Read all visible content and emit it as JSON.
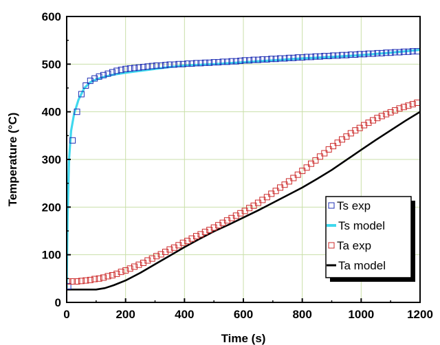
{
  "chart_data": {
    "type": "scatter",
    "xlabel": "Time (s)",
    "ylabel": "Temperature (°C)",
    "xlim": [
      0,
      1200
    ],
    "ylim": [
      0,
      600
    ],
    "xticks": [
      "0",
      "200",
      "400",
      "600",
      "800",
      "1000",
      "1200"
    ],
    "yticks": [
      "0",
      "100",
      "200",
      "300",
      "400",
      "500",
      "600"
    ],
    "grid": true,
    "legend_position": "bottom-right",
    "colors": {
      "ts_exp": "#1f2fb4",
      "ts_model": "#3fd8ee",
      "ta_exp": "#cc2a2a",
      "ta_model": "#000000",
      "grid": "#c9dfa8"
    },
    "series": [
      {
        "name": "Ts exp",
        "kind": "markers",
        "marker": "open-square",
        "x": [
          5,
          20,
          35,
          50,
          65,
          80,
          95,
          110,
          125,
          140,
          155,
          170,
          185,
          200,
          215,
          230,
          245,
          260,
          275,
          290,
          305,
          320,
          335,
          350,
          365,
          380,
          395,
          410,
          425,
          440,
          455,
          470,
          485,
          500,
          515,
          530,
          545,
          560,
          575,
          590,
          605,
          620,
          635,
          650,
          665,
          680,
          695,
          710,
          725,
          740,
          755,
          770,
          785,
          800,
          815,
          830,
          845,
          860,
          875,
          890,
          905,
          920,
          935,
          950,
          965,
          980,
          995,
          1010,
          1025,
          1040,
          1055,
          1070,
          1085,
          1100,
          1115,
          1130,
          1145,
          1160,
          1175,
          1190
        ],
        "y": [
          34,
          340,
          400,
          437,
          455,
          465,
          470,
          474,
          477,
          480,
          483,
          486,
          488,
          490,
          491,
          492,
          493,
          494,
          495,
          496,
          497,
          497,
          498,
          499,
          499,
          500,
          500,
          501,
          501,
          502,
          502,
          503,
          503,
          504,
          504,
          505,
          505,
          506,
          506,
          507,
          508,
          508,
          509,
          509,
          510,
          510,
          511,
          511,
          512,
          512,
          513,
          513,
          514,
          514,
          515,
          515,
          516,
          516,
          517,
          517,
          518,
          518,
          519,
          519,
          520,
          520,
          521,
          521,
          522,
          522,
          523,
          523,
          524,
          524,
          525,
          525,
          526,
          526,
          527,
          527
        ]
      },
      {
        "name": "Ts model",
        "kind": "line",
        "x": [
          0,
          3,
          8,
          15,
          25,
          40,
          60,
          80,
          100,
          130,
          160,
          200,
          250,
          300,
          350,
          400,
          500,
          600,
          700,
          800,
          900,
          1000,
          1100,
          1200
        ],
        "y": [
          30,
          180,
          300,
          360,
          395,
          425,
          450,
          462,
          468,
          474,
          478,
          482,
          486,
          490,
          494,
          497,
          500,
          504,
          508,
          512,
          515,
          519,
          524,
          530
        ]
      },
      {
        "name": "Ta exp",
        "kind": "markers",
        "marker": "open-square",
        "x": [
          5,
          20,
          35,
          50,
          65,
          80,
          95,
          110,
          125,
          140,
          155,
          170,
          185,
          200,
          215,
          230,
          245,
          260,
          275,
          290,
          305,
          320,
          335,
          350,
          365,
          380,
          395,
          410,
          425,
          440,
          455,
          470,
          485,
          500,
          515,
          530,
          545,
          560,
          575,
          590,
          605,
          620,
          635,
          650,
          665,
          680,
          695,
          710,
          725,
          740,
          755,
          770,
          785,
          800,
          815,
          830,
          845,
          860,
          875,
          890,
          905,
          920,
          935,
          950,
          965,
          980,
          995,
          1010,
          1025,
          1040,
          1055,
          1070,
          1085,
          1100,
          1115,
          1130,
          1145,
          1160,
          1175,
          1190
        ],
        "y": [
          44,
          44,
          44,
          45,
          46,
          47,
          49,
          50,
          52,
          55,
          57,
          60,
          64,
          67,
          71,
          75,
          79,
          83,
          88,
          92,
          97,
          101,
          106,
          111,
          115,
          120,
          125,
          129,
          134,
          139,
          143,
          148,
          152,
          157,
          162,
          167,
          172,
          177,
          182,
          187,
          192,
          198,
          203,
          209,
          215,
          221,
          228,
          234,
          241,
          247,
          254,
          261,
          268,
          276,
          283,
          291,
          298,
          306,
          313,
          321,
          328,
          335,
          342,
          348,
          355,
          361,
          366,
          372,
          377,
          382,
          387,
          391,
          395,
          399,
          403,
          407,
          410,
          413,
          416,
          419
        ]
      },
      {
        "name": "Ta model",
        "kind": "line",
        "x": [
          0,
          50,
          100,
          130,
          160,
          200,
          250,
          300,
          350,
          400,
          450,
          500,
          550,
          600,
          650,
          700,
          750,
          800,
          850,
          900,
          950,
          1000,
          1050,
          1100,
          1150,
          1200
        ],
        "y": [
          27,
          27,
          27,
          30,
          36,
          46,
          62,
          80,
          98,
          116,
          133,
          149,
          163,
          178,
          193,
          209,
          225,
          241,
          259,
          278,
          299,
          320,
          341,
          361,
          381,
          400
        ]
      }
    ]
  }
}
